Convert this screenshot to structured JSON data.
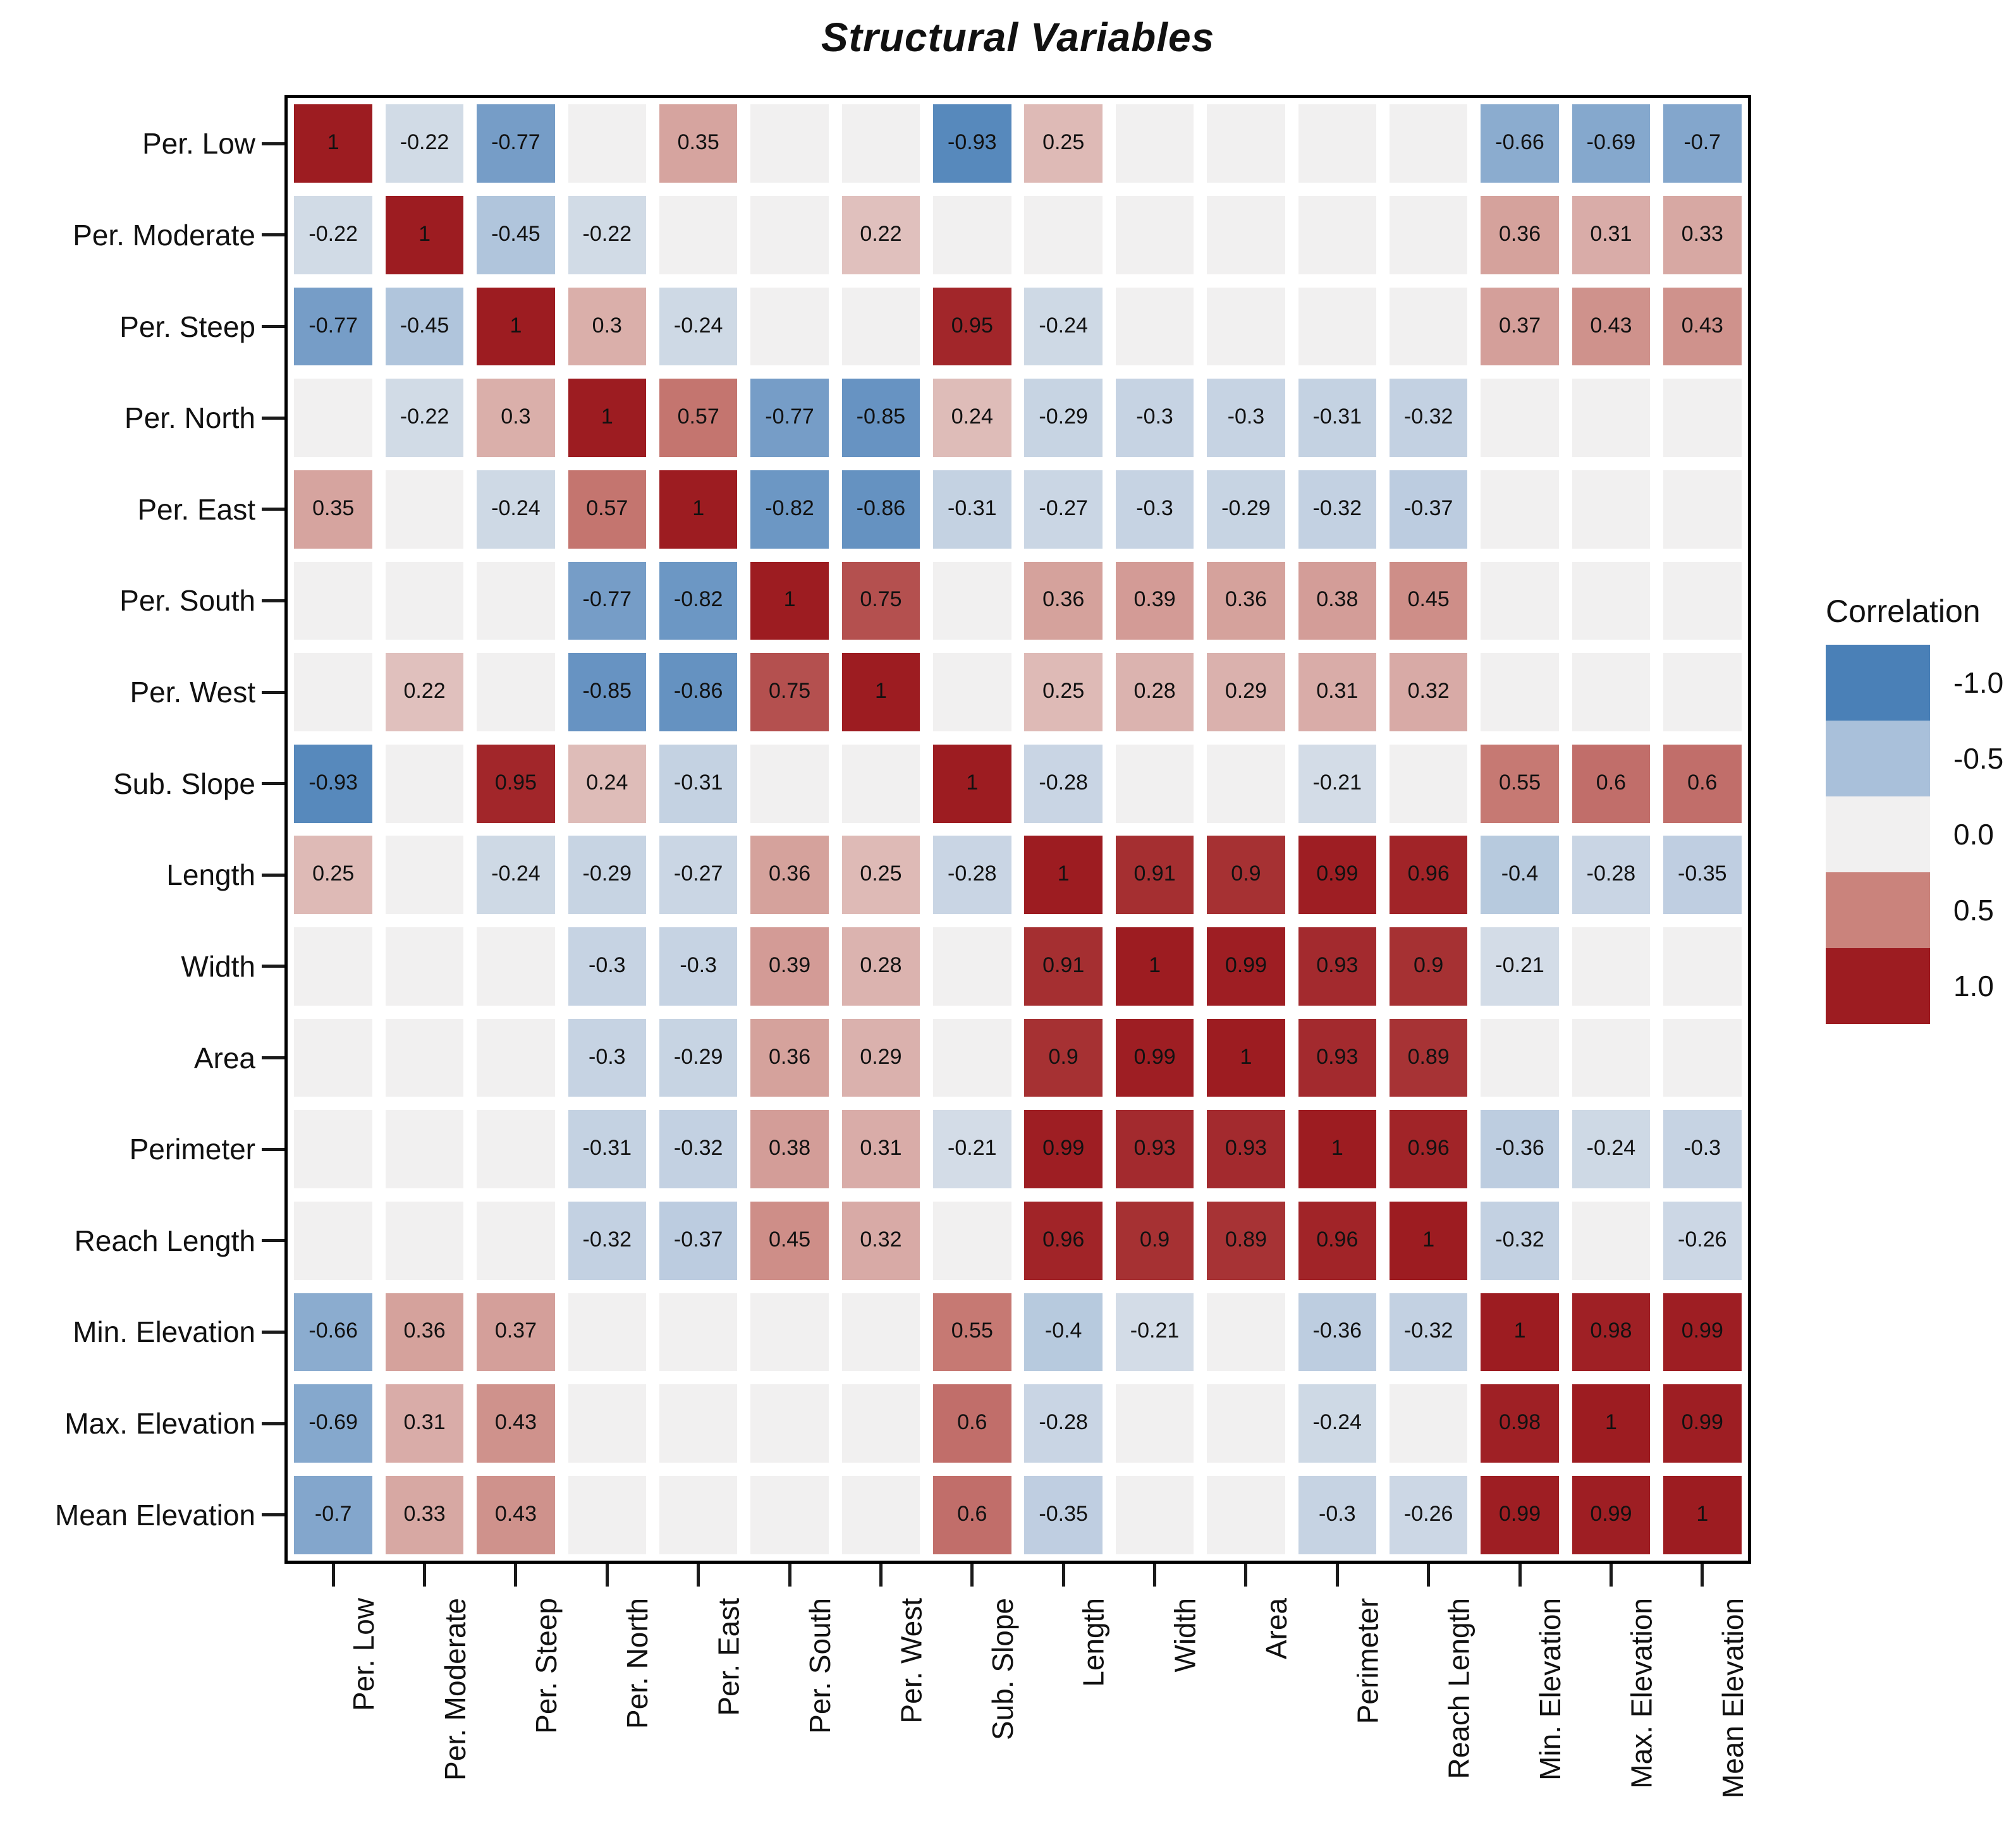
{
  "title": "Structural Variables",
  "legend": {
    "title": "Correlation",
    "entries": [
      {
        "label": "-1.0",
        "value": -1.0
      },
      {
        "label": "-0.5",
        "value": -0.5
      },
      {
        "label": "0.0",
        "value": 0.0
      },
      {
        "label": "0.5",
        "value": 0.5
      },
      {
        "label": "1.0",
        "value": 1.0
      }
    ]
  },
  "chart_data": {
    "type": "heatmap",
    "title": "Structural Variables",
    "categories": [
      "Per. Low",
      "Per. Moderate",
      "Per. Steep",
      "Per. North",
      "Per. East",
      "Per. South",
      "Per. West",
      "Sub. Slope",
      "Length",
      "Width",
      "Area",
      "Perimeter",
      "Reach Length",
      "Min. Elevation",
      "Max. Elevation",
      "Mean Elevation"
    ],
    "matrix": [
      [
        1,
        -0.22,
        -0.77,
        null,
        0.35,
        null,
        null,
        -0.93,
        0.25,
        null,
        null,
        null,
        null,
        -0.66,
        -0.69,
        -0.7
      ],
      [
        -0.22,
        1,
        -0.45,
        -0.22,
        null,
        null,
        0.22,
        null,
        null,
        null,
        null,
        null,
        null,
        0.36,
        0.31,
        0.33
      ],
      [
        -0.77,
        -0.45,
        1,
        0.3,
        -0.24,
        null,
        null,
        0.95,
        -0.24,
        null,
        null,
        null,
        null,
        0.37,
        0.43,
        0.43
      ],
      [
        null,
        -0.22,
        0.3,
        1,
        0.57,
        -0.77,
        -0.85,
        0.24,
        -0.29,
        -0.3,
        -0.3,
        -0.31,
        -0.32,
        null,
        null,
        null
      ],
      [
        0.35,
        null,
        -0.24,
        0.57,
        1,
        -0.82,
        -0.86,
        -0.31,
        -0.27,
        -0.3,
        -0.29,
        -0.32,
        -0.37,
        null,
        null,
        null
      ],
      [
        null,
        null,
        null,
        -0.77,
        -0.82,
        1,
        0.75,
        null,
        0.36,
        0.39,
        0.36,
        0.38,
        0.45,
        null,
        null,
        null
      ],
      [
        null,
        0.22,
        null,
        -0.85,
        -0.86,
        0.75,
        1,
        null,
        0.25,
        0.28,
        0.29,
        0.31,
        0.32,
        null,
        null,
        null
      ],
      [
        -0.93,
        null,
        0.95,
        0.24,
        -0.31,
        null,
        null,
        1,
        -0.28,
        null,
        null,
        -0.21,
        null,
        0.55,
        0.6,
        0.6
      ],
      [
        0.25,
        null,
        -0.24,
        -0.29,
        -0.27,
        0.36,
        0.25,
        -0.28,
        1,
        0.91,
        0.9,
        0.99,
        0.96,
        -0.4,
        -0.28,
        -0.35
      ],
      [
        null,
        null,
        null,
        -0.3,
        -0.3,
        0.39,
        0.28,
        null,
        0.91,
        1,
        0.99,
        0.93,
        0.9,
        -0.21,
        null,
        null
      ],
      [
        null,
        null,
        null,
        -0.3,
        -0.29,
        0.36,
        0.29,
        null,
        0.9,
        0.99,
        1,
        0.93,
        0.89,
        null,
        null,
        null
      ],
      [
        null,
        null,
        null,
        -0.31,
        -0.32,
        0.38,
        0.31,
        -0.21,
        0.99,
        0.93,
        0.93,
        1,
        0.96,
        -0.36,
        -0.24,
        -0.3
      ],
      [
        null,
        null,
        null,
        -0.32,
        -0.37,
        0.45,
        0.32,
        null,
        0.96,
        0.9,
        0.89,
        0.96,
        1,
        -0.32,
        null,
        -0.26
      ],
      [
        -0.66,
        0.36,
        0.37,
        null,
        null,
        null,
        null,
        0.55,
        -0.4,
        -0.21,
        null,
        -0.36,
        -0.32,
        1,
        0.98,
        0.99
      ],
      [
        -0.69,
        0.31,
        0.43,
        null,
        null,
        null,
        null,
        0.6,
        -0.28,
        null,
        null,
        -0.24,
        null,
        0.98,
        1,
        0.99
      ],
      [
        -0.7,
        0.33,
        0.43,
        null,
        null,
        null,
        null,
        0.6,
        -0.35,
        null,
        null,
        -0.3,
        -0.26,
        0.99,
        0.99,
        1
      ]
    ],
    "blank_meaning": "not significant (shown as 0.0 gray, no label)",
    "legend_title": "Correlation",
    "legend_labels": [
      "-1.0",
      "-0.5",
      "0.0",
      "0.5",
      "1.0"
    ],
    "color_scale": {
      "domain": [
        -1,
        -0.5,
        0,
        0.5,
        1
      ],
      "colors": [
        "#4a80b7",
        "#a9c0da",
        "#f1f0f0",
        "#ca837c",
        "#9d1c21"
      ]
    },
    "value_range": [
      -1,
      1
    ],
    "grid": false,
    "legend_position": "right"
  }
}
